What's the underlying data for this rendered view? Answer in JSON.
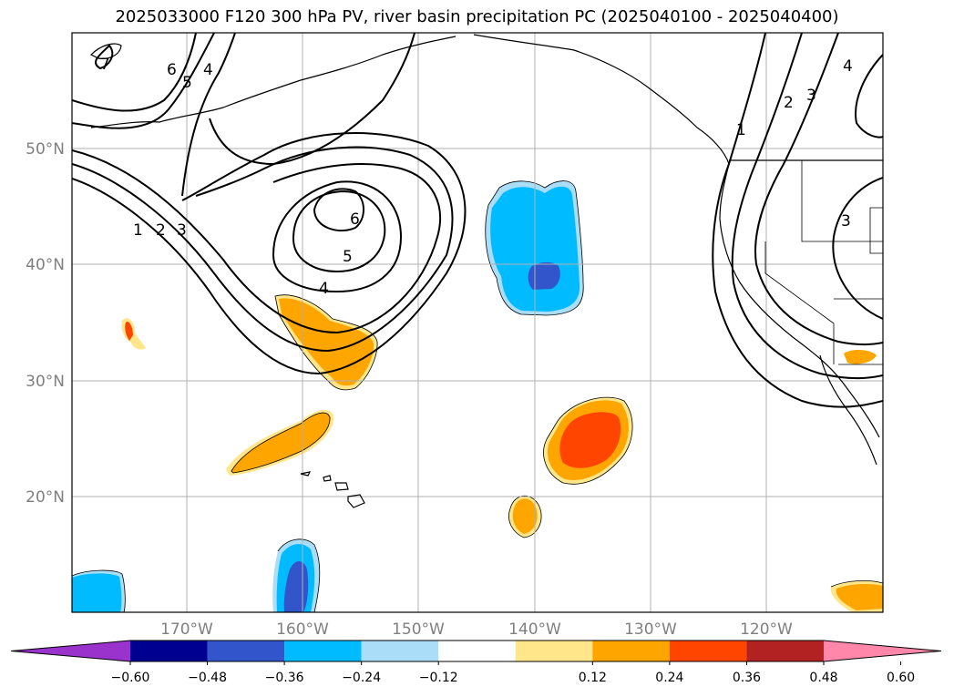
{
  "title": "2025033000 F120 300 hPa PV, river basin precipitation PC (2025040100 - 2025040400)",
  "map": {
    "lat_labels": [
      "50°N",
      "40°N",
      "30°N",
      "20°N"
    ],
    "lon_labels": [
      "170°W",
      "160°W",
      "150°W",
      "140°W",
      "130°W",
      "120°W"
    ],
    "pv_contour_labels": [
      "7",
      "6",
      "5",
      "4",
      "1",
      "2",
      "3",
      "6",
      "5",
      "4",
      "1",
      "2",
      "3",
      "4",
      "3"
    ]
  },
  "colorbar": {
    "ticks": [
      "−0.60",
      "−0.48",
      "−0.36",
      "−0.24",
      "−0.12",
      "0.12",
      "0.24",
      "0.36",
      "0.48",
      "0.60"
    ],
    "colors": [
      "#9933cc",
      "#000090",
      "#3355cc",
      "#00bbff",
      "#aaddf7",
      "#ffffff",
      "#ffe68a",
      "#ffa500",
      "#ff4500",
      "#b22222",
      "#ff88aa"
    ]
  }
}
